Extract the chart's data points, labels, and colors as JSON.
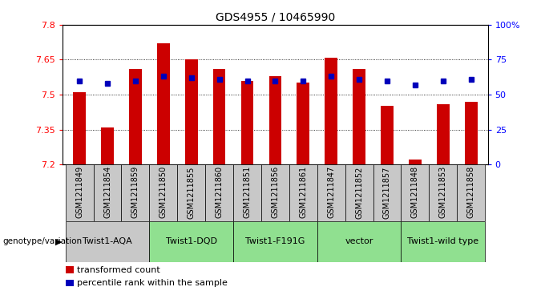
{
  "title": "GDS4955 / 10465990",
  "samples": [
    "GSM1211849",
    "GSM1211854",
    "GSM1211859",
    "GSM1211850",
    "GSM1211855",
    "GSM1211860",
    "GSM1211851",
    "GSM1211856",
    "GSM1211861",
    "GSM1211847",
    "GSM1211852",
    "GSM1211857",
    "GSM1211848",
    "GSM1211853",
    "GSM1211858"
  ],
  "bar_values": [
    7.51,
    7.36,
    7.61,
    7.72,
    7.65,
    7.61,
    7.56,
    7.58,
    7.55,
    7.66,
    7.61,
    7.45,
    7.22,
    7.46,
    7.47
  ],
  "dot_values": [
    60,
    58,
    60,
    63,
    62,
    61,
    60,
    60,
    60,
    63,
    61,
    60,
    57,
    60,
    61
  ],
  "groups": [
    {
      "label": "Twist1-AQA",
      "start": 0,
      "end": 3,
      "color": "#c8c8c8"
    },
    {
      "label": "Twist1-DQD",
      "start": 3,
      "end": 6,
      "color": "#90e090"
    },
    {
      "label": "Twist1-F191G",
      "start": 6,
      "end": 9,
      "color": "#90e090"
    },
    {
      "label": "vector",
      "start": 9,
      "end": 12,
      "color": "#90e090"
    },
    {
      "label": "Twist1-wild type",
      "start": 12,
      "end": 15,
      "color": "#90e090"
    }
  ],
  "sample_bg_color": "#c8c8c8",
  "ymin": 7.2,
  "ymax": 7.8,
  "yticks": [
    7.2,
    7.35,
    7.5,
    7.65,
    7.8
  ],
  "ytick_labels": [
    "7.2",
    "7.35",
    "7.5",
    "7.65",
    "7.8"
  ],
  "y2ticks": [
    0,
    25,
    50,
    75,
    100
  ],
  "y2labels": [
    "0",
    "25",
    "50",
    "75",
    "100%"
  ],
  "bar_color": "#cc0000",
  "dot_color": "#0000bb",
  "bar_bottom": 7.2,
  "background_color": "#ffffff",
  "label_fontsize": 7,
  "title_fontsize": 10,
  "group_fontsize": 8,
  "legend_fontsize": 8
}
